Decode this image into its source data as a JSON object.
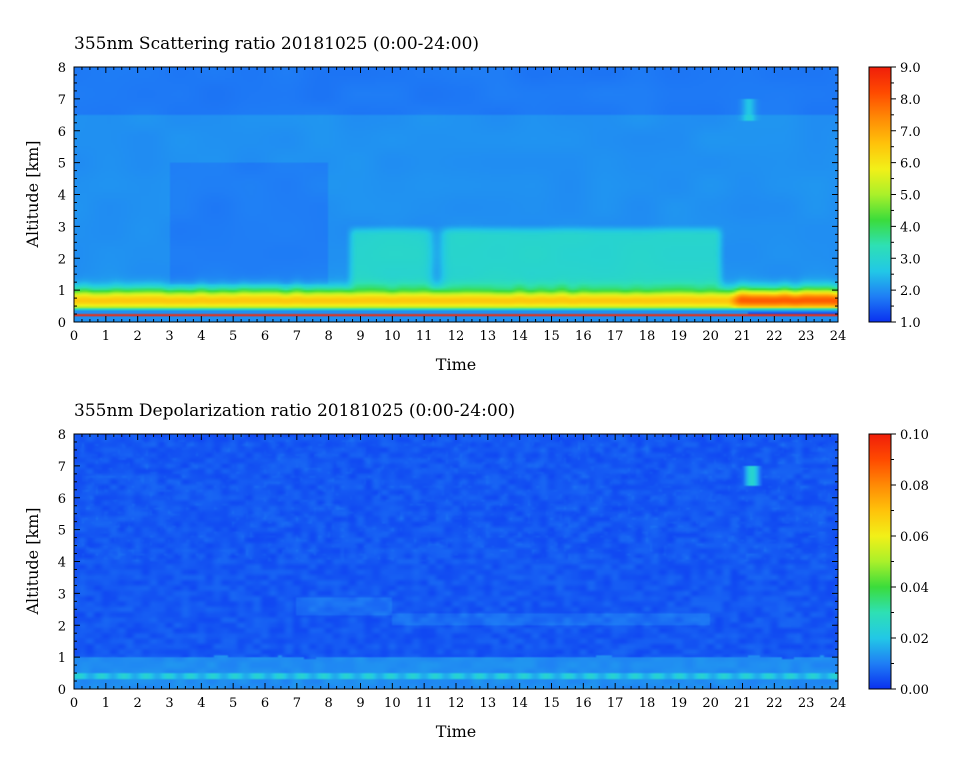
{
  "chart_data": [
    {
      "type": "heatmap",
      "title": "355nm Scattering ratio  20181025 (0:00-24:00)",
      "xlabel": "Time",
      "ylabel": "Altitude [km]",
      "xlim": [
        0,
        24
      ],
      "ylim": [
        0,
        8
      ],
      "x_ticks": [
        "0",
        "1",
        "2",
        "3",
        "4",
        "5",
        "6",
        "7",
        "8",
        "9",
        "10",
        "11",
        "12",
        "13",
        "14",
        "15",
        "16",
        "17",
        "18",
        "19",
        "20",
        "21",
        "22",
        "23",
        "24"
      ],
      "y_ticks": [
        "0",
        "1",
        "2",
        "3",
        "4",
        "5",
        "6",
        "7",
        "8"
      ],
      "colorbar": {
        "range": [
          1.0,
          9.0
        ],
        "ticks": [
          "1.0",
          "2.0",
          "3.0",
          "4.0",
          "5.0",
          "6.0",
          "7.0",
          "8.0",
          "9.0"
        ]
      },
      "features": {
        "boundary_layer": {
          "altitude_km": [
            0.35,
            1.1
          ],
          "value": 6.5,
          "peak_hours": [
            21,
            24
          ],
          "peak_value": 8.0
        },
        "elevated_layer": {
          "hours": [
            8.5,
            20.5
          ],
          "altitude_km": [
            1.0,
            2.9
          ],
          "value": 3.0
        },
        "free_troposphere": {
          "value": 2.0
        },
        "ground_line_km": 0.2
      }
    },
    {
      "type": "heatmap",
      "title": "355nm Depolarization ratio  20181025 (0:00-24:00)",
      "xlabel": "Time",
      "ylabel": "Altitude [km]",
      "xlim": [
        0,
        24
      ],
      "ylim": [
        0,
        8
      ],
      "x_ticks": [
        "0",
        "1",
        "2",
        "3",
        "4",
        "5",
        "6",
        "7",
        "8",
        "9",
        "10",
        "11",
        "12",
        "13",
        "14",
        "15",
        "16",
        "17",
        "18",
        "19",
        "20",
        "21",
        "22",
        "23",
        "24"
      ],
      "y_ticks": [
        "0",
        "1",
        "2",
        "3",
        "4",
        "5",
        "6",
        "7",
        "8"
      ],
      "colorbar": {
        "range": [
          0.0,
          0.1
        ],
        "ticks": [
          "0.00",
          "0.02",
          "0.04",
          "0.06",
          "0.08",
          "0.10"
        ]
      },
      "features": {
        "near_surface_layer": {
          "altitude_km": [
            0.3,
            0.5
          ],
          "value": 0.02
        },
        "boundary_layer": {
          "altitude_km": [
            0.0,
            1.0
          ],
          "value": 0.012
        },
        "background": {
          "value": 0.005
        },
        "cirrus_patch": {
          "hours": [
            20.8,
            21.6
          ],
          "altitude_km": [
            6.4,
            7.0
          ],
          "value": 0.025
        }
      }
    }
  ],
  "colors": {
    "colormap": [
      "#0a30f0",
      "#1f7ef5",
      "#22c8e6",
      "#2ee0b4",
      "#3bdc3b",
      "#aaf02a",
      "#f2f018",
      "#ffc20a",
      "#ff8a05",
      "#ff4a00",
      "#f01e0a"
    ]
  }
}
